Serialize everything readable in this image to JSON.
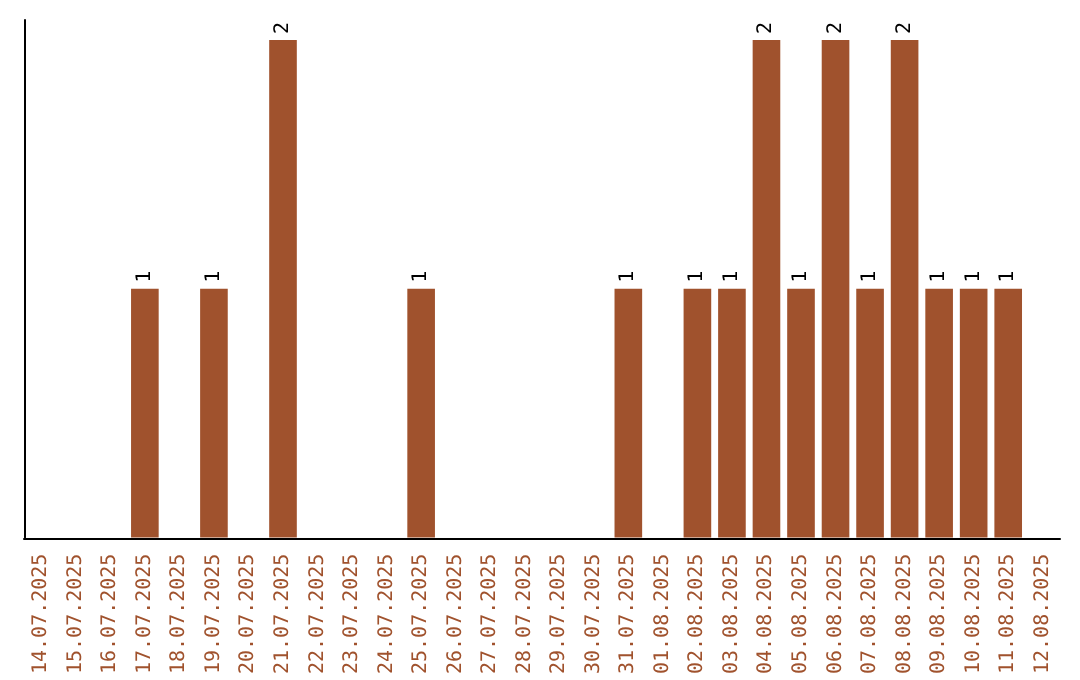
{
  "chart_data": {
    "type": "bar",
    "categories": [
      "14.07.2025",
      "15.07.2025",
      "16.07.2025",
      "17.07.2025",
      "18.07.2025",
      "19.07.2025",
      "20.07.2025",
      "21.07.2025",
      "22.07.2025",
      "23.07.2025",
      "24.07.2025",
      "25.07.2025",
      "26.07.2025",
      "27.07.2025",
      "28.07.2025",
      "29.07.2025",
      "30.07.2025",
      "31.07.2025",
      "01.08.2025",
      "02.08.2025",
      "03.08.2025",
      "04.08.2025",
      "05.08.2025",
      "06.08.2025",
      "07.08.2025",
      "08.08.2025",
      "09.08.2025",
      "10.08.2025",
      "11.08.2025",
      "12.08.2025"
    ],
    "values": [
      0,
      0,
      0,
      1,
      0,
      1,
      0,
      2,
      0,
      0,
      0,
      1,
      0,
      0,
      0,
      0,
      0,
      1,
      0,
      1,
      1,
      2,
      1,
      2,
      1,
      2,
      1,
      1,
      1,
      0
    ],
    "value_labels": [
      null,
      null,
      null,
      "1",
      null,
      "1",
      null,
      "2",
      null,
      null,
      null,
      "1",
      null,
      null,
      null,
      null,
      null,
      "1",
      null,
      "1",
      "1",
      "2",
      "1",
      "2",
      "1",
      "2",
      "1",
      "1",
      "1",
      null
    ],
    "color": "#a0522d",
    "ylim": [
      0,
      2.08
    ],
    "tick_labels": "x",
    "grid": false
  }
}
